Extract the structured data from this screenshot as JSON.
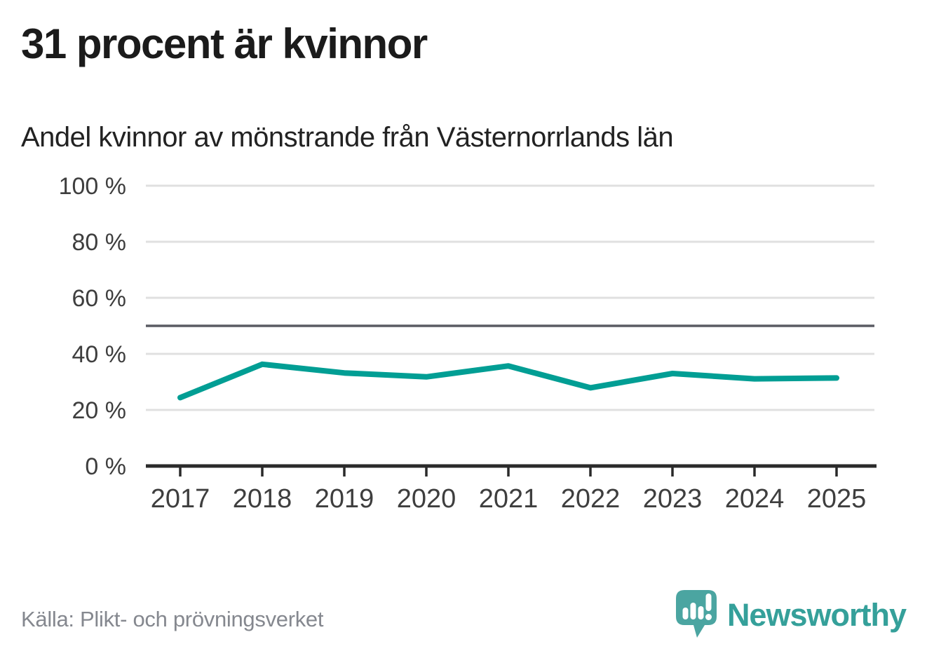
{
  "header": {
    "title": "31 procent är kvinnor",
    "subtitle": "Andel kvinnor av mönstrande från Västernorrlands län"
  },
  "chart_data": {
    "type": "line",
    "title": "31 procent är kvinnor",
    "subtitle": "Andel kvinnor av mönstrande från Västernorrlands län",
    "categories": [
      "2017",
      "2018",
      "2019",
      "2020",
      "2021",
      "2022",
      "2023",
      "2024",
      "2025"
    ],
    "series": [
      {
        "name": "andel-kvinnor",
        "color": "#019e94",
        "values": [
          24.4,
          36.3,
          33.2,
          31.8,
          35.7,
          27.9,
          33.0,
          31.1,
          31.4
        ]
      }
    ],
    "ylim": [
      0,
      100
    ],
    "yticks": [
      0,
      20,
      40,
      60,
      80,
      100
    ],
    "ytick_labels": [
      "0 %",
      "20 %",
      "40 %",
      "60 %",
      "80 %",
      "100 %"
    ],
    "reference_line": 50,
    "grid": true,
    "legend": "none",
    "xlabel": "",
    "ylabel": ""
  },
  "footer": {
    "source": "Källa: Plikt- och prövningsverket",
    "logo_text": "Newsworthy"
  },
  "colors": {
    "accent_teal": "#019e94",
    "logo_icon": "#4ba5a1",
    "logo_text": "#35a09a",
    "grid": "#e0e0e0",
    "reference": "#5a5b63",
    "axis": "#2a2a2a",
    "axis_text": "#3e3e3e",
    "source_text": "#85888f",
    "title_text": "#1b1b1b"
  }
}
